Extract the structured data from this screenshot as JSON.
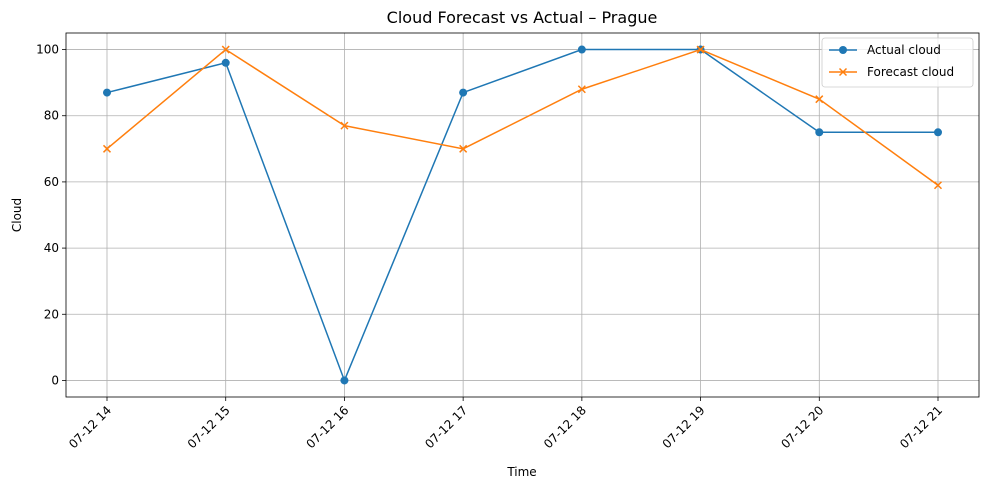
{
  "chart_data": {
    "type": "line",
    "title": "Cloud Forecast vs Actual – Prague",
    "xlabel": "Time",
    "ylabel": "Cloud",
    "categories": [
      "07-12 14",
      "07-12 15",
      "07-12 16",
      "07-12 17",
      "07-12 18",
      "07-12 19",
      "07-12 20",
      "07-12 21"
    ],
    "ylim": [
      -5,
      105
    ],
    "yticks": [
      0,
      20,
      40,
      60,
      80,
      100
    ],
    "grid": true,
    "legend_position": "top-right",
    "series": [
      {
        "name": "Actual cloud",
        "values": [
          87,
          96,
          0,
          87,
          100,
          100,
          75,
          75
        ],
        "color": "#1f77b4",
        "marker": "circle"
      },
      {
        "name": "Forecast cloud",
        "values": [
          70,
          100,
          77,
          70,
          88,
          100,
          85,
          59
        ],
        "color": "#ff7f0e",
        "marker": "x"
      }
    ]
  }
}
